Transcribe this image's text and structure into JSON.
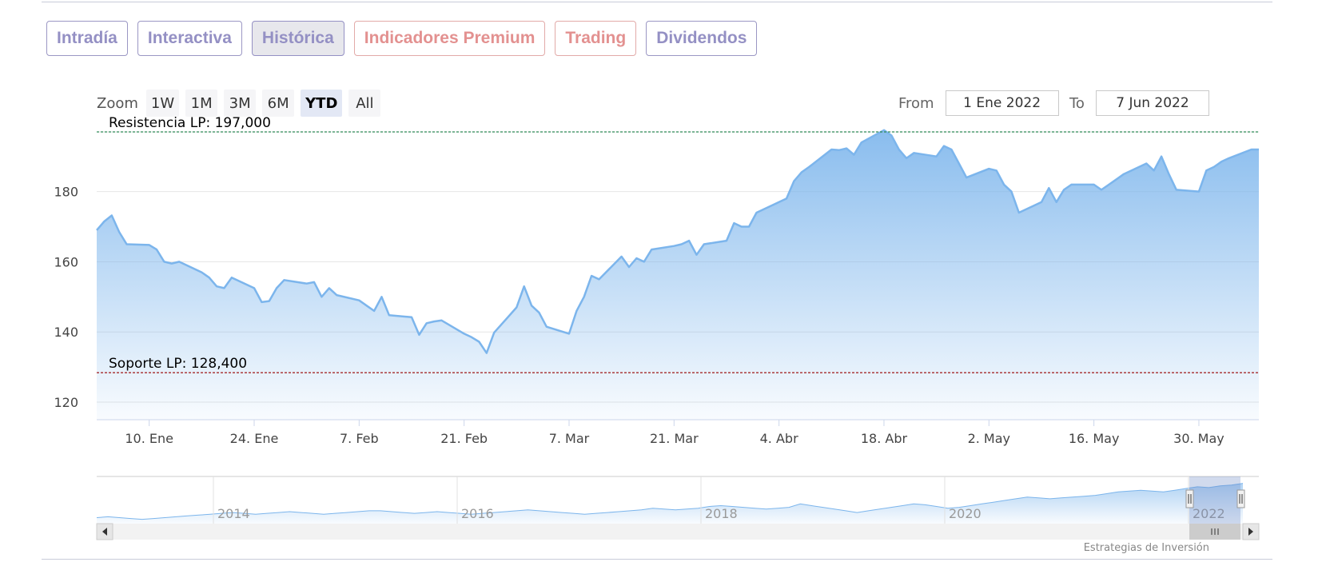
{
  "tabs": [
    {
      "label": "Intradía",
      "style": "normal"
    },
    {
      "label": "Interactiva",
      "style": "normal"
    },
    {
      "label": "Histórica",
      "style": "active"
    },
    {
      "label": "Indicadores Premium",
      "style": "premium"
    },
    {
      "label": "Trading",
      "style": "trading"
    },
    {
      "label": "Dividendos",
      "style": "normal"
    }
  ],
  "range_selector": {
    "zoom_label": "Zoom",
    "buttons": [
      "1W",
      "1M",
      "3M",
      "6M",
      "YTD",
      "All"
    ],
    "selected": "YTD",
    "from_label": "From",
    "from_value": "1 Ene 2022",
    "to_label": "To",
    "to_value": "7 Jun 2022"
  },
  "credits": "Estrategias de Inversión",
  "colors": {
    "line": "#7cb5ec",
    "resistance": "#2e8b57",
    "support": "#a52a2a",
    "tab_text": "#9490c4",
    "tab_premium_text": "#e39190"
  },
  "chart_data": {
    "type": "area",
    "ylim": [
      115,
      197
    ],
    "yticks": [
      120,
      140,
      160,
      180
    ],
    "xticks": [
      "10. Ene",
      "24. Ene",
      "7. Feb",
      "21. Feb",
      "7. Mar",
      "21. Mar",
      "4. Abr",
      "18. Abr",
      "2. May",
      "16. May",
      "30. May"
    ],
    "grid": true,
    "plot_lines": [
      {
        "label": "Resistencia LP: 197,000",
        "value": 197.0,
        "style": "dashed"
      },
      {
        "label": "Soporte LP: 128,400",
        "value": 128.4,
        "style": "dashed"
      }
    ],
    "series": [
      {
        "dates": [
          "2022-01-03",
          "2022-01-04",
          "2022-01-05",
          "2022-01-06",
          "2022-01-07",
          "2022-01-10",
          "2022-01-11",
          "2022-01-12",
          "2022-01-13",
          "2022-01-14",
          "2022-01-17",
          "2022-01-18",
          "2022-01-19",
          "2022-01-20",
          "2022-01-21",
          "2022-01-24",
          "2022-01-25",
          "2022-01-26",
          "2022-01-27",
          "2022-01-28",
          "2022-01-31",
          "2022-02-01",
          "2022-02-02",
          "2022-02-03",
          "2022-02-04",
          "2022-02-07",
          "2022-02-08",
          "2022-02-09",
          "2022-02-10",
          "2022-02-11",
          "2022-02-14",
          "2022-02-15",
          "2022-02-16",
          "2022-02-17",
          "2022-02-18",
          "2022-02-21",
          "2022-02-22",
          "2022-02-23",
          "2022-02-24",
          "2022-02-25",
          "2022-02-28",
          "2022-03-01",
          "2022-03-02",
          "2022-03-03",
          "2022-03-04",
          "2022-03-07",
          "2022-03-08",
          "2022-03-09",
          "2022-03-10",
          "2022-03-11",
          "2022-03-14",
          "2022-03-15",
          "2022-03-16",
          "2022-03-17",
          "2022-03-18",
          "2022-03-21",
          "2022-03-22",
          "2022-03-23",
          "2022-03-24",
          "2022-03-25",
          "2022-03-28",
          "2022-03-29",
          "2022-03-30",
          "2022-03-31",
          "2022-04-01",
          "2022-04-04",
          "2022-04-05",
          "2022-04-06",
          "2022-04-07",
          "2022-04-08",
          "2022-04-11",
          "2022-04-12",
          "2022-04-13",
          "2022-04-14",
          "2022-04-15",
          "2022-04-18",
          "2022-04-19",
          "2022-04-20",
          "2022-04-21",
          "2022-04-22",
          "2022-04-25",
          "2022-04-26",
          "2022-04-27",
          "2022-04-28",
          "2022-04-29",
          "2022-05-02",
          "2022-05-03",
          "2022-05-04",
          "2022-05-05",
          "2022-05-06",
          "2022-05-09",
          "2022-05-10",
          "2022-05-11",
          "2022-05-12",
          "2022-05-13",
          "2022-05-16",
          "2022-05-17",
          "2022-05-18",
          "2022-05-19",
          "2022-05-20",
          "2022-05-23",
          "2022-05-24",
          "2022-05-25",
          "2022-05-26",
          "2022-05-27",
          "2022-05-30",
          "2022-05-31",
          "2022-06-01",
          "2022-06-02",
          "2022-06-03",
          "2022-06-06",
          "2022-06-07"
        ],
        "values": [
          169.0,
          171.5,
          173.2,
          168.5,
          165.0,
          164.8,
          163.5,
          160.0,
          159.5,
          160.0,
          157.0,
          155.5,
          153.0,
          152.5,
          155.5,
          152.5,
          148.5,
          148.8,
          152.5,
          154.8,
          153.8,
          154.2,
          150.0,
          152.5,
          150.5,
          149.0,
          147.5,
          146.0,
          150.0,
          144.8,
          144.2,
          139.2,
          142.5,
          143.0,
          143.3,
          139.5,
          138.5,
          137.2,
          134.0,
          139.8,
          147.0,
          153.0,
          147.5,
          145.5,
          141.5,
          139.5,
          146.0,
          150.0,
          156.0,
          155.0,
          161.5,
          158.5,
          161.0,
          160.0,
          163.5,
          164.5,
          165.0,
          166.0,
          162.0,
          165.0,
          166.0,
          171.0,
          170.0,
          170.0,
          174.0,
          177.0,
          178.0,
          183.0,
          185.5,
          187.0,
          192.0,
          191.8,
          192.3,
          190.5,
          194.0,
          197.5,
          196.0,
          192.0,
          189.5,
          191.0,
          190.0,
          193.0,
          192.0,
          188.0,
          184.0,
          186.5,
          186.0,
          182.0,
          180.0,
          174.0,
          177.0,
          181.0,
          177.0,
          180.5,
          182.0,
          182.0,
          180.5,
          182.0,
          183.5,
          185.0,
          188.0,
          186.0,
          190.0,
          185.0,
          180.5,
          180.0,
          186.0,
          187.0,
          188.5,
          189.5,
          192.0,
          192.0
        ]
      }
    ],
    "navigator": {
      "labels": [
        "2014",
        "2016",
        "2018",
        "2020",
        "2022"
      ],
      "values": [
        102,
        103,
        102,
        101,
        100,
        101,
        102,
        103,
        104,
        105,
        106,
        107,
        108,
        107,
        106,
        107,
        108,
        109,
        108,
        107,
        106,
        107,
        108,
        109,
        110,
        110,
        109,
        108,
        107,
        108,
        109,
        108,
        107,
        106,
        107,
        108,
        109,
        110,
        111,
        110,
        109,
        108,
        107,
        106,
        107,
        108,
        109,
        110,
        111,
        113,
        112,
        111,
        112,
        113,
        115,
        116,
        115,
        114,
        113,
        112,
        113,
        114,
        118,
        116,
        114,
        112,
        110,
        108,
        110,
        112,
        114,
        116,
        118,
        117,
        115,
        113,
        114,
        116,
        118,
        120,
        122,
        124,
        126,
        125,
        124,
        125,
        126,
        127,
        128,
        130,
        132,
        133,
        134,
        133,
        132,
        134,
        136,
        138,
        137,
        139,
        140,
        142
      ]
    }
  }
}
